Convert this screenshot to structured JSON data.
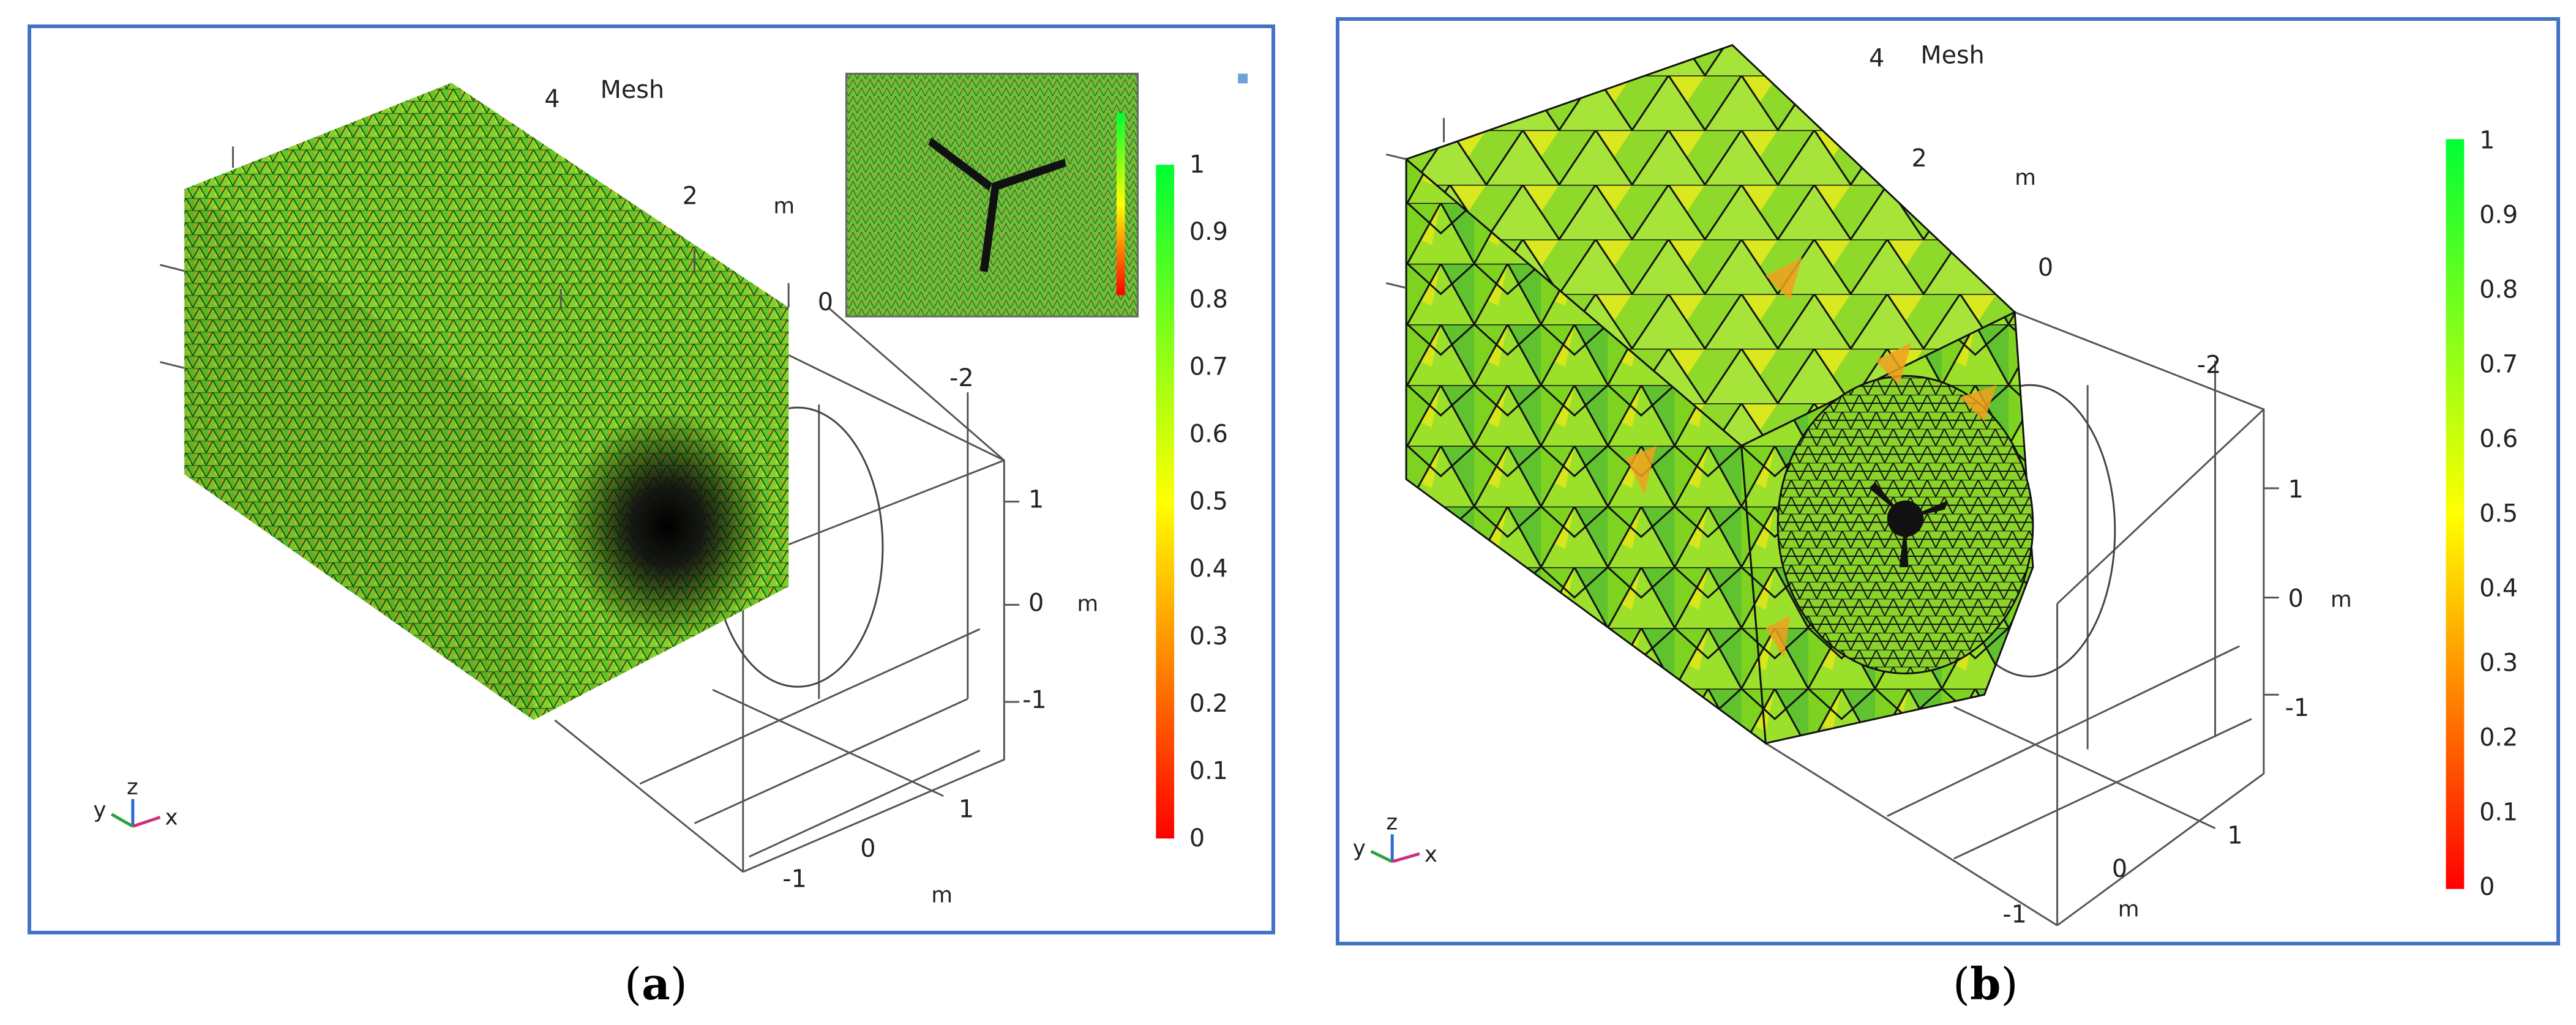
{
  "panels": [
    {
      "id": "a",
      "title": "Mesh",
      "caption": "a",
      "ticks_depth": [
        "4",
        "2",
        "0"
      ],
      "unit_depth": "m",
      "ticks_right": [
        "-2",
        "1",
        "0",
        "-1"
      ],
      "unit_right": "m",
      "ticks_front": [
        "1",
        "0",
        "-1"
      ],
      "unit_front": "m",
      "colorbar_ticks": [
        "1",
        "0.9",
        "0.8",
        "0.7",
        "0.6",
        "0.5",
        "0.4",
        "0.3",
        "0.2",
        "0.1",
        "0"
      ],
      "axes": {
        "x": "x",
        "y": "y",
        "z": "z"
      }
    },
    {
      "id": "b",
      "title": "Mesh",
      "caption": "b",
      "ticks_depth": [
        "4",
        "2",
        "0"
      ],
      "unit_depth": "m",
      "ticks_right": [
        "-2",
        "1",
        "0",
        "-1"
      ],
      "unit_right": "m",
      "ticks_front": [
        "1",
        "0",
        "-1"
      ],
      "unit_front": "m",
      "colorbar_ticks": [
        "1",
        "0.9",
        "0.8",
        "0.7",
        "0.6",
        "0.5",
        "0.4",
        "0.3",
        "0.2",
        "0.1",
        "0"
      ],
      "axes": {
        "x": "x",
        "y": "y",
        "z": "z"
      }
    }
  ],
  "colors": {
    "border": "#4472C4",
    "mesh_green": "#5ec62a",
    "mesh_yellow": "#d7e61c",
    "mesh_orange": "#f0a020",
    "colorbar_top": "#00ff33",
    "colorbar_mid": "#ffff00",
    "colorbar_bottom": "#ff0000"
  }
}
